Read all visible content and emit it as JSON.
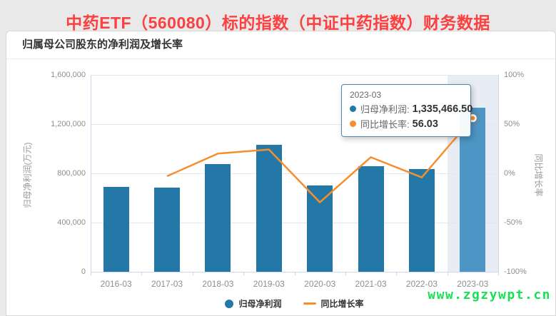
{
  "page": {
    "title": "中药ETF（560080）标的指数（中证中药指数）财务数据",
    "title_color": "#fa4040",
    "watermark": "www.zgzywpt.cn",
    "watermark_color": "#17e253"
  },
  "panel": {
    "header": "归属母公司股东的净利润及增长率"
  },
  "chart_data": {
    "type": "bar",
    "title": "归属母公司股东的净利润及增长率",
    "categories": [
      "2016-03",
      "2017-03",
      "2018-03",
      "2019-03",
      "2020-03",
      "2021-03",
      "2022-03",
      "2023-03"
    ],
    "series": [
      {
        "name": "归母净利润",
        "type": "bar",
        "axis": "left",
        "values": [
          690000,
          685000,
          875000,
          1030000,
          700000,
          860000,
          837000,
          1335466.5
        ],
        "color": "#2478a8",
        "emphasis_color": "#4c95c5",
        "emphasis_index": 7
      },
      {
        "name": "同比增长率",
        "type": "line",
        "axis": "right",
        "values": [
          null,
          -2.9,
          20.1,
          24.2,
          -29.4,
          16.4,
          -4.1,
          56.03
        ],
        "color": "#f78e2d"
      }
    ],
    "ylabel_left": "归母净利润(万元)",
    "ylabel_right": "同比增长率",
    "yaxis_left": {
      "min": 0,
      "max": 1600000,
      "ticks": [
        "1,600,000",
        "1,200,000",
        "800,000",
        "400,000",
        "0"
      ]
    },
    "yaxis_right": {
      "min": -100,
      "max": 100,
      "ticks": [
        "100%",
        "50%",
        "0%",
        "-50%",
        "-100%"
      ]
    },
    "grid": true,
    "legend_position": "bottom",
    "highlighted_category": "2023-03"
  },
  "tooltip": {
    "title": "2023-03",
    "rows": [
      {
        "label": "归母净利润",
        "value": "1,335,466.50",
        "color": "#2478a8"
      },
      {
        "label": "同比增长率",
        "value": "56.03",
        "color": "#f78e2d"
      }
    ]
  }
}
